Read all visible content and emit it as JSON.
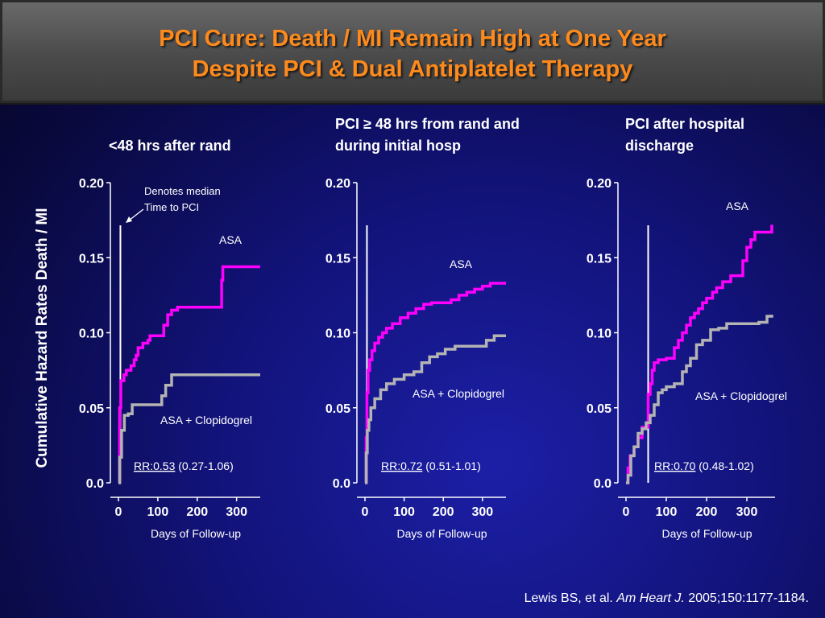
{
  "title": {
    "line1": "PCI Cure: Death / MI Remain High at One Year",
    "line2": "Despite PCI & Dual Antiplatelet Therapy"
  },
  "y_axis_label": "Cumulative Hazard Rates Death / MI",
  "x_axis_label": "Days of Follow-up",
  "annotation": {
    "line1": "Denotes median",
    "line2": "Time to PCI"
  },
  "citation": {
    "authors": "Lewis BS, et al. ",
    "journal": "Am Heart J.",
    "details": " 2005;150:1177-1184."
  },
  "colors": {
    "asa": "#ff00ff",
    "clopidogrel": "#b4b4b4",
    "title": "#ff8a1c"
  },
  "chart_data": [
    {
      "type": "line",
      "title_lines": [
        "<48 hrs after rand"
      ],
      "median_pci_day": 5,
      "yticks": [
        "0.20",
        "0.15",
        "0.10",
        "0.05",
        "0.0"
      ],
      "ytick_values": [
        0.2,
        0.15,
        0.1,
        0.05,
        0.0
      ],
      "xticks": [
        "0",
        "100",
        "200",
        "300"
      ],
      "xtick_values": [
        0,
        100,
        200,
        300
      ],
      "ylim": [
        0,
        0.2
      ],
      "xlim": [
        0,
        360
      ],
      "rr_value": "RR:0.53",
      "rr_ci": " (0.27-1.06)",
      "series": [
        {
          "name": "ASA",
          "x": [
            0,
            3,
            6,
            14,
            20,
            32,
            40,
            45,
            50,
            62,
            75,
            80,
            95,
            115,
            125,
            135,
            150,
            180,
            205,
            215,
            225,
            255,
            262,
            265,
            300,
            330,
            360
          ],
          "y": [
            0.0,
            0.05,
            0.068,
            0.072,
            0.075,
            0.078,
            0.082,
            0.085,
            0.09,
            0.093,
            0.095,
            0.098,
            0.098,
            0.105,
            0.112,
            0.115,
            0.117,
            0.117,
            0.117,
            0.117,
            0.117,
            0.117,
            0.135,
            0.144,
            0.144,
            0.144,
            0.144
          ]
        },
        {
          "name": "ASA + Clopidogrel",
          "x": [
            0,
            3,
            8,
            15,
            25,
            35,
            60,
            80,
            100,
            110,
            120,
            135,
            150,
            200,
            250,
            300,
            360
          ],
          "y": [
            0.0,
            0.017,
            0.035,
            0.045,
            0.046,
            0.052,
            0.052,
            0.052,
            0.052,
            0.058,
            0.065,
            0.072,
            0.072,
            0.072,
            0.072,
            0.072,
            0.072
          ]
        }
      ]
    },
    {
      "type": "line",
      "title_lines": [
        "PCI ≥ 48 hrs from rand and",
        "during initial hosp"
      ],
      "median_pci_day": 5,
      "yticks": [
        "0.20",
        "0.15",
        "0.10",
        "0.05",
        "0.0"
      ],
      "ytick_values": [
        0.2,
        0.15,
        0.1,
        0.05,
        0.0
      ],
      "xticks": [
        "0",
        "100",
        "200",
        "300"
      ],
      "xtick_values": [
        0,
        100,
        200,
        300
      ],
      "ylim": [
        0,
        0.2
      ],
      "xlim": [
        0,
        360
      ],
      "rr_value": "RR:0.72",
      "rr_ci": " (0.51-1.01)",
      "series": [
        {
          "name": "ASA",
          "x": [
            0,
            3,
            5,
            8,
            12,
            18,
            25,
            35,
            45,
            55,
            70,
            90,
            110,
            130,
            150,
            170,
            190,
            220,
            240,
            260,
            280,
            300,
            320,
            340,
            360
          ],
          "y": [
            0.0,
            0.03,
            0.06,
            0.075,
            0.082,
            0.088,
            0.093,
            0.097,
            0.1,
            0.103,
            0.106,
            0.11,
            0.113,
            0.116,
            0.119,
            0.12,
            0.12,
            0.122,
            0.125,
            0.127,
            0.129,
            0.131,
            0.133,
            0.133,
            0.133
          ]
        },
        {
          "name": "ASA + Clopidogrel",
          "x": [
            0,
            3,
            6,
            10,
            15,
            25,
            40,
            55,
            75,
            100,
            125,
            145,
            165,
            185,
            205,
            230,
            260,
            290,
            310,
            330,
            360
          ],
          "y": [
            0.0,
            0.02,
            0.035,
            0.042,
            0.05,
            0.056,
            0.062,
            0.066,
            0.069,
            0.072,
            0.074,
            0.08,
            0.084,
            0.086,
            0.089,
            0.091,
            0.091,
            0.091,
            0.095,
            0.098,
            0.098
          ]
        }
      ]
    },
    {
      "type": "line",
      "title_lines": [
        "PCI after hospital",
        "discharge"
      ],
      "median_pci_day": 55,
      "yticks": [
        "0.20",
        "0.15",
        "0.10",
        "0.05",
        "0.0"
      ],
      "ytick_values": [
        0.2,
        0.15,
        0.1,
        0.05,
        0.0
      ],
      "xticks": [
        "0",
        "100",
        "200",
        "300"
      ],
      "xtick_values": [
        0,
        100,
        200,
        300
      ],
      "ylim": [
        0,
        0.2
      ],
      "xlim": [
        0,
        370
      ],
      "rr_value": "RR:0.70",
      "rr_ci": " (0.48-1.02)",
      "series": [
        {
          "name": "ASA",
          "x": [
            0,
            5,
            10,
            20,
            30,
            40,
            55,
            60,
            65,
            70,
            80,
            100,
            120,
            130,
            140,
            150,
            160,
            170,
            180,
            190,
            200,
            215,
            225,
            240,
            260,
            270,
            290,
            300,
            310,
            320,
            330,
            340,
            350,
            362
          ],
          "y": [
            0.0,
            0.01,
            0.018,
            0.024,
            0.03,
            0.037,
            0.059,
            0.066,
            0.075,
            0.08,
            0.082,
            0.083,
            0.09,
            0.095,
            0.1,
            0.105,
            0.11,
            0.113,
            0.116,
            0.12,
            0.123,
            0.127,
            0.13,
            0.134,
            0.138,
            0.138,
            0.148,
            0.157,
            0.162,
            0.167,
            0.167,
            0.167,
            0.167,
            0.172
          ]
        },
        {
          "name": "ASA + Clopidogrel",
          "x": [
            0,
            5,
            12,
            20,
            30,
            40,
            50,
            60,
            70,
            80,
            90,
            100,
            120,
            140,
            150,
            160,
            175,
            190,
            210,
            230,
            250,
            270,
            300,
            330,
            350,
            362
          ],
          "y": [
            0.0,
            0.005,
            0.018,
            0.024,
            0.033,
            0.036,
            0.04,
            0.045,
            0.052,
            0.06,
            0.062,
            0.064,
            0.066,
            0.074,
            0.078,
            0.083,
            0.092,
            0.095,
            0.102,
            0.103,
            0.106,
            0.106,
            0.106,
            0.107,
            0.111,
            0.112
          ]
        }
      ]
    }
  ]
}
